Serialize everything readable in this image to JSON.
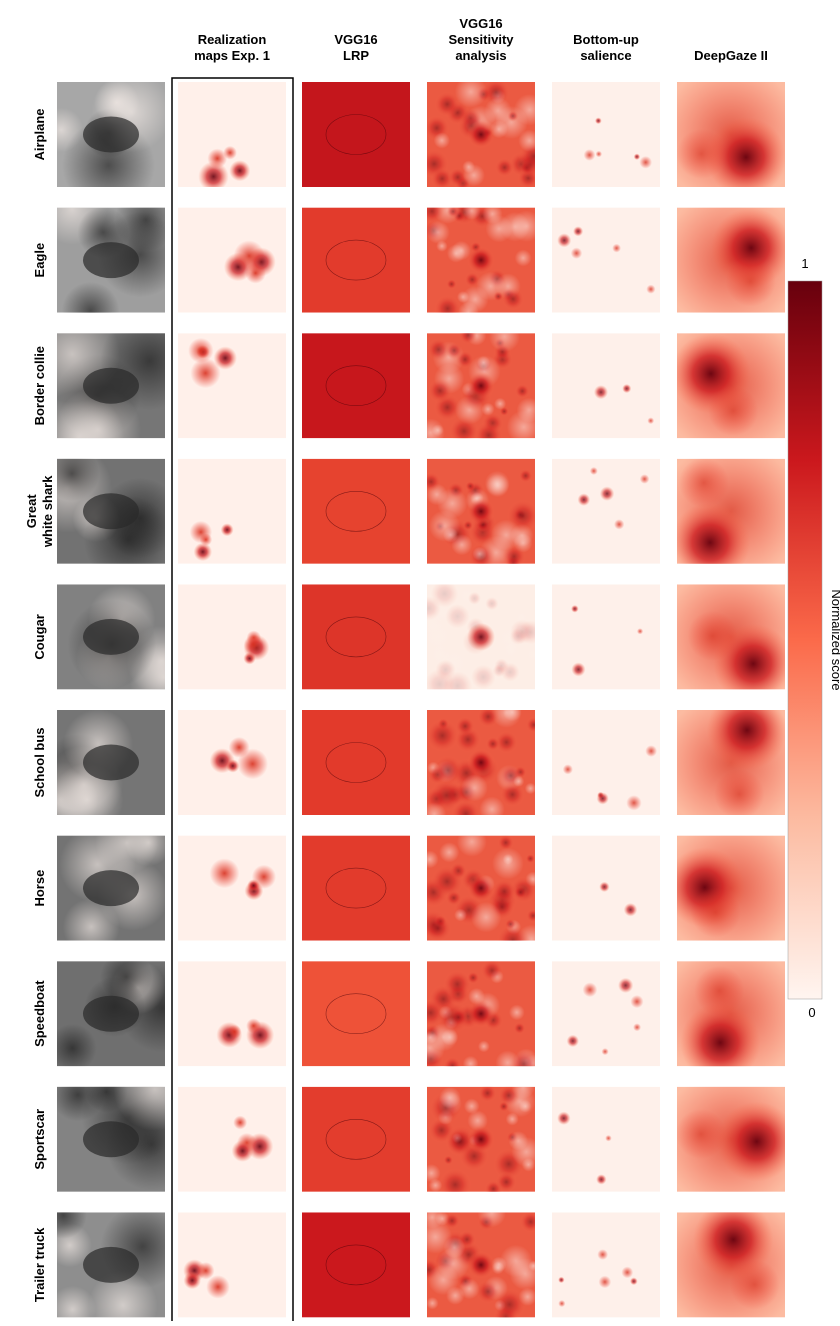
{
  "header": {
    "columns": [
      [
        "Realization",
        "maps Exp. 1"
      ],
      [
        "VGG16",
        "LRP"
      ],
      [
        "VGG16",
        "Sensitivity",
        "analysis"
      ],
      [
        "Bottom-up",
        "salience"
      ],
      [
        "DeepGaze II"
      ]
    ]
  },
  "rows": [
    [
      "Airplane"
    ],
    [
      "Eagle"
    ],
    [
      "Border collie"
    ],
    [
      "Great",
      "white shark"
    ],
    [
      "Cougar"
    ],
    [
      "School bus"
    ],
    [
      "Horse"
    ],
    [
      "Speedboat"
    ],
    [
      "Sportscar"
    ],
    [
      "Trailer truck"
    ]
  ],
  "colorbar": {
    "max_label": "1",
    "min_label": "0",
    "title": "Normalized score"
  }
}
